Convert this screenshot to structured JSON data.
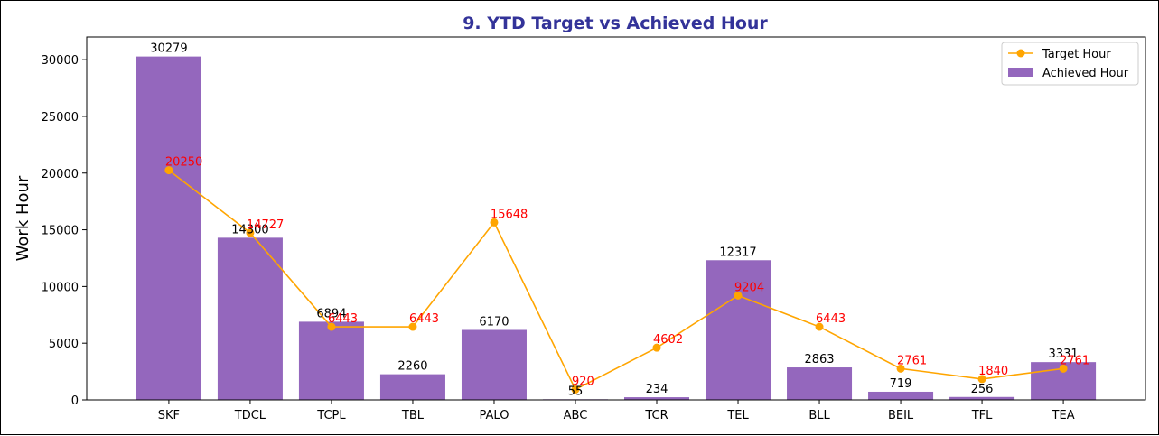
{
  "chart_data": {
    "type": "bar",
    "title": "9. YTD Target vs Achieved Hour",
    "title_color": "#333399",
    "xlabel": "",
    "ylabel": "Work Hour",
    "ylim": [
      0,
      32000
    ],
    "yticks": [
      0,
      5000,
      10000,
      15000,
      20000,
      25000,
      30000
    ],
    "grid": false,
    "legend_position": "top-right",
    "categories": [
      "SKF",
      "TDCL",
      "TCPL",
      "TBL",
      "PALO",
      "ABC",
      "TCR",
      "TEL",
      "BLL",
      "BEIL",
      "TFL",
      "TEA"
    ],
    "series": [
      {
        "name": "Target Hour",
        "type": "line",
        "color": "#ffa500",
        "label_color": "#ff0000",
        "values": [
          20250,
          14727,
          6443,
          6443,
          15648,
          920,
          4602,
          9204,
          6443,
          2761,
          1840,
          2761
        ]
      },
      {
        "name": "Achieved Hour",
        "type": "bar",
        "color": "#9467bd",
        "label_color": "#000000",
        "values": [
          30279,
          14300,
          6894,
          2260,
          6170,
          55,
          234,
          12317,
          2863,
          719,
          256,
          3331
        ]
      }
    ]
  }
}
